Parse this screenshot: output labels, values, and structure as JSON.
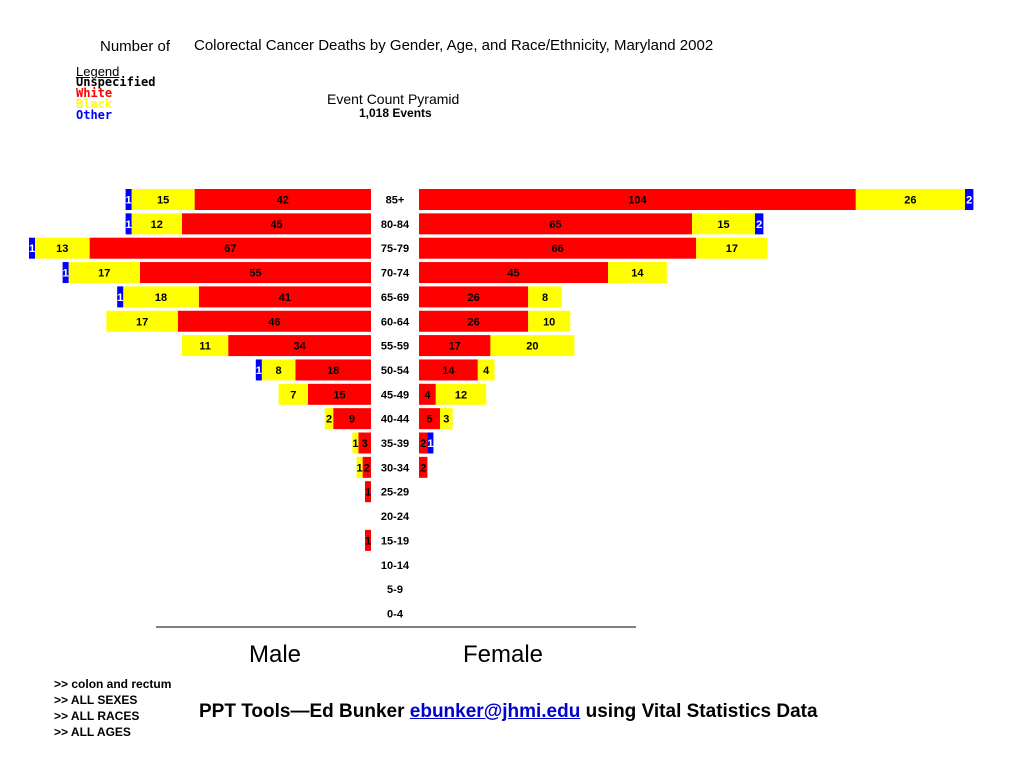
{
  "page": {
    "title_prefix": "Number of",
    "title": "Colorectal Cancer Deaths by Gender, Age, and Race/Ethnicity, Maryland 2002",
    "legend": {
      "heading": "Legend",
      "items": [
        {
          "label": "Unspecified",
          "color": "#000000"
        },
        {
          "label": "White",
          "color": "#ff0000"
        },
        {
          "label": "Black",
          "color": "#ffff00"
        },
        {
          "label": "Other",
          "color": "#0000ff"
        }
      ]
    },
    "filters": [
      ">> colon and rectum",
      ">> ALL SEXES",
      ">> ALL RACES",
      ">> ALL AGES"
    ],
    "credit": {
      "before": "PPT Tools—Ed Bunker ",
      "email": "ebunker@jhmi.edu",
      "after": " using Vital Statistics Data"
    }
  },
  "chart_data": {
    "type": "bar",
    "title": "Event Count Pyramid",
    "subtitle": "1,018 Events",
    "left_label": "Male",
    "right_label": "Female",
    "series_order": [
      "White",
      "Black",
      "Other"
    ],
    "colors": {
      "White": "#ff0000",
      "Black": "#ffff00",
      "Other": "#0000ff"
    },
    "categories": [
      "85+",
      "80-84",
      "75-79",
      "70-74",
      "65-69",
      "60-64",
      "55-59",
      "50-54",
      "45-49",
      "40-44",
      "35-39",
      "30-34",
      "25-29",
      "20-24",
      "15-19",
      "10-14",
      "5-9",
      "0-4"
    ],
    "male": [
      {
        "White": 42,
        "Black": 15,
        "Other": 1
      },
      {
        "White": 45,
        "Black": 12,
        "Other": 1
      },
      {
        "White": 67,
        "Black": 13,
        "Other": 1
      },
      {
        "White": 55,
        "Black": 17,
        "Other": 1
      },
      {
        "White": 41,
        "Black": 18,
        "Other": 1
      },
      {
        "White": 46,
        "Black": 17,
        "Other": 0
      },
      {
        "White": 34,
        "Black": 11,
        "Other": 0
      },
      {
        "White": 18,
        "Black": 8,
        "Other": 1
      },
      {
        "White": 15,
        "Black": 7,
        "Other": 0
      },
      {
        "White": 9,
        "Black": 2,
        "Other": 0
      },
      {
        "White": 3,
        "Black": 1,
        "Other": 0
      },
      {
        "White": 2,
        "Black": 1,
        "Other": 0
      },
      {
        "White": 1,
        "Black": 0,
        "Other": 0
      },
      {
        "White": 0,
        "Black": 0,
        "Other": 0
      },
      {
        "White": 1,
        "Black": 0,
        "Other": 0
      },
      {
        "White": 0,
        "Black": 0,
        "Other": 0
      },
      {
        "White": 0,
        "Black": 0,
        "Other": 0
      },
      {
        "White": 0,
        "Black": 0,
        "Other": 0
      }
    ],
    "female": [
      {
        "White": 104,
        "Black": 26,
        "Other": 2
      },
      {
        "White": 65,
        "Black": 15,
        "Other": 2
      },
      {
        "White": 66,
        "Black": 17,
        "Other": 0
      },
      {
        "White": 45,
        "Black": 14,
        "Other": 0
      },
      {
        "White": 26,
        "Black": 8,
        "Other": 0
      },
      {
        "White": 26,
        "Black": 10,
        "Other": 0
      },
      {
        "White": 17,
        "Black": 20,
        "Other": 0
      },
      {
        "White": 14,
        "Black": 4,
        "Other": 0
      },
      {
        "White": 4,
        "Black": 12,
        "Other": 0
      },
      {
        "White": 5,
        "Black": 3,
        "Other": 0
      },
      {
        "White": 2,
        "Black": 0,
        "Other": 1
      },
      {
        "White": 2,
        "Black": 0,
        "Other": 0
      },
      {
        "White": 0,
        "Black": 0,
        "Other": 0
      },
      {
        "White": 0,
        "Black": 0,
        "Other": 0
      },
      {
        "White": 0,
        "Black": 0,
        "Other": 0
      },
      {
        "White": 0,
        "Black": 0,
        "Other": 0
      },
      {
        "White": 0,
        "Black": 0,
        "Other": 0
      },
      {
        "White": 0,
        "Black": 0,
        "Other": 0
      }
    ]
  }
}
